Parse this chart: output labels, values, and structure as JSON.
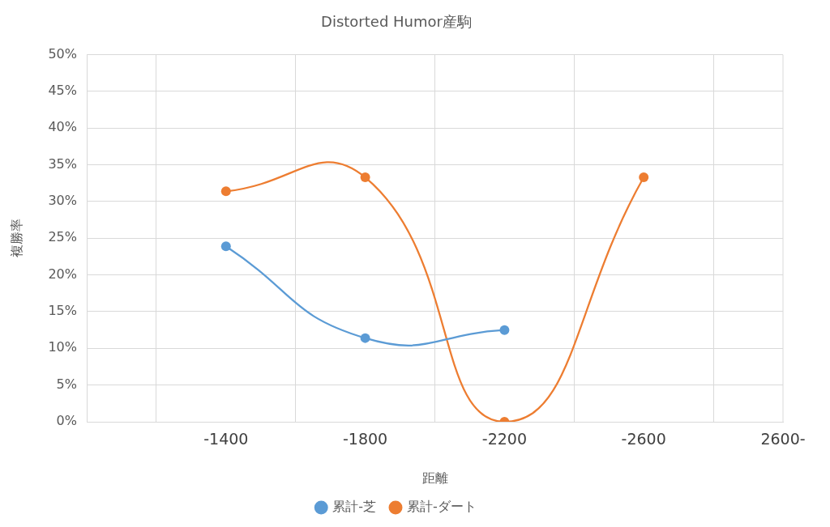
{
  "chart_data": {
    "type": "line",
    "title": "Distorted Humor産駒",
    "xlabel": "距離",
    "ylabel": "複勝率",
    "categories": [
      null,
      "-1400",
      "-1800",
      "-2200",
      "-2600",
      "2600-"
    ],
    "series": [
      {
        "name": "累計-芝",
        "color": "#5b9bd5",
        "values": [
          null,
          23.9,
          11.4,
          12.5,
          null,
          null
        ]
      },
      {
        "name": "累計-ダート",
        "color": "#ed7d31",
        "values": [
          null,
          31.4,
          33.3,
          0,
          33.3,
          null
        ]
      }
    ],
    "ylim": [
      0,
      50
    ],
    "yticks": [
      {
        "value": 0,
        "label": "0%"
      },
      {
        "value": 5,
        "label": "5%"
      },
      {
        "value": 10,
        "label": "10%"
      },
      {
        "value": 15,
        "label": "15%"
      },
      {
        "value": 20,
        "label": "20%"
      },
      {
        "value": 25,
        "label": "25%"
      },
      {
        "value": 30,
        "label": "30%"
      },
      {
        "value": 35,
        "label": "35%"
      },
      {
        "value": 40,
        "label": "40%"
      },
      {
        "value": 45,
        "label": "45%"
      },
      {
        "value": 50,
        "label": "50%"
      }
    ],
    "grid": true,
    "legend": "bottom",
    "marker": "circle",
    "line_style": "solid"
  }
}
